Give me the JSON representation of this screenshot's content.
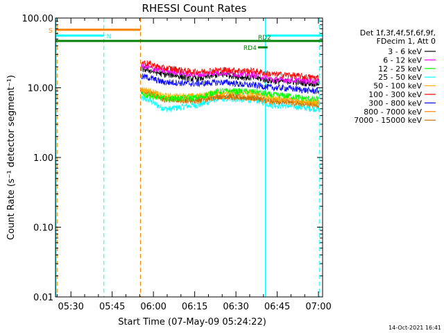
{
  "chart_data": {
    "type": "line",
    "title": "RHESSI Count Rates",
    "xlabel": "Start Time (07-May-09 05:24:22)",
    "ylabel": "Count Rate (s⁻¹ detector segment⁻¹)",
    "yscale": "log",
    "ylim": [
      0.01,
      100
    ],
    "xlim_minutes": [
      324.4,
      421.5
    ],
    "x_ticks": [
      {
        "label": "05:30",
        "minutes": 330
      },
      {
        "label": "05:45",
        "minutes": 345
      },
      {
        "label": "06:00",
        "minutes": 360
      },
      {
        "label": "06:15",
        "minutes": 375
      },
      {
        "label": "06:30",
        "minutes": 390
      },
      {
        "label": "06:45",
        "minutes": 405
      },
      {
        "label": "07:00",
        "minutes": 420
      }
    ],
    "y_ticks": [
      {
        "label": "100.00",
        "value": 100
      },
      {
        "label": "10.00",
        "value": 10
      },
      {
        "label": "1.00",
        "value": 1
      },
      {
        "label": "0.10",
        "value": 0.1
      },
      {
        "label": "0.01",
        "value": 0.01
      }
    ],
    "legend_header": [
      "Det 1f,3f,4f,5f,6f,9f,",
      "FDecim 1, Att 0"
    ],
    "data_start_minutes": 355.5,
    "data_end_minutes": 420.3,
    "series": [
      {
        "name": "3 - 6 keV",
        "color": "#000000",
        "values": [
          18.5,
          15.5,
          13.5,
          15.5,
          14.0,
          12.5,
          11.5
        ]
      },
      {
        "name": "6 - 12 keV",
        "color": "#ff00ff",
        "values": [
          20.0,
          17.5,
          15.5,
          16.5,
          15.5,
          13.0,
          12.5
        ]
      },
      {
        "name": "12 - 25 keV",
        "color": "#00ff00",
        "values": [
          8.0,
          7.0,
          7.2,
          9.0,
          8.8,
          7.8,
          6.8
        ]
      },
      {
        "name": "25 - 50 keV",
        "color": "#00ffff",
        "values": [
          7.0,
          5.0,
          5.6,
          7.0,
          6.8,
          5.6,
          5.0
        ]
      },
      {
        "name": "50 - 100 keV",
        "color": "#ffb000",
        "values": [
          9.5,
          7.6,
          7.6,
          8.6,
          8.4,
          7.0,
          6.2
        ]
      },
      {
        "name": "100 - 300 keV",
        "color": "#ff0000",
        "values": [
          23.0,
          19.0,
          17.0,
          18.0,
          17.5,
          15.5,
          14.0
        ]
      },
      {
        "name": "300 - 800 keV",
        "color": "#0000ff",
        "values": [
          14.5,
          12.0,
          11.5,
          12.0,
          11.0,
          10.0,
          9.0
        ]
      },
      {
        "name": "800 - 7000 keV",
        "color": "#ff8000",
        "values": [
          9.0,
          6.8,
          6.6,
          7.6,
          7.2,
          6.4,
          5.8
        ]
      },
      {
        "name": "7000 - 15000 keV",
        "color": "#c07000",
        "values": [
          9.0,
          6.8,
          6.6,
          7.6,
          7.2,
          6.4,
          5.8
        ]
      }
    ],
    "sample_minutes": [
      355.5,
      365,
      375,
      385,
      395,
      405,
      420.3
    ],
    "annotations": {
      "vlines": [
        {
          "minutes": 324.6,
          "color": "#00ffff",
          "style": "solid"
        },
        {
          "minutes": 325.0,
          "color": "#ff8000",
          "style": "dashed"
        },
        {
          "minutes": 342.0,
          "color": "#00ffff",
          "style": "dashed"
        },
        {
          "minutes": 355.3,
          "color": "#ff8000",
          "style": "dashed"
        },
        {
          "minutes": 400.7,
          "color": "#00ffff",
          "style": "solid"
        },
        {
          "minutes": 420.3,
          "color": "#00ffff",
          "style": "dashed"
        }
      ],
      "bars": [
        {
          "label": "S",
          "color": "#ff8000",
          "from": 324.4,
          "to": 355.3,
          "value": 68
        },
        {
          "label": "N",
          "color": "#00ffff",
          "from": 324.4,
          "to": 342.0,
          "value": 56
        },
        {
          "label": "",
          "color": "#00ffff",
          "from": 400.7,
          "to": 421.5,
          "value": 56
        },
        {
          "label": "",
          "color": "#008000",
          "from": 324.4,
          "to": 421.5,
          "value": 47
        },
        {
          "label": "RD4",
          "color": "#008000",
          "from": 398.0,
          "to": 401.5,
          "value": 38
        },
        {
          "label": "RD2",
          "color": "#008000",
          "from": 396.5,
          "to": 401.5,
          "value": 47
        }
      ]
    }
  },
  "timestamp": "14-Oct-2021 16:41"
}
